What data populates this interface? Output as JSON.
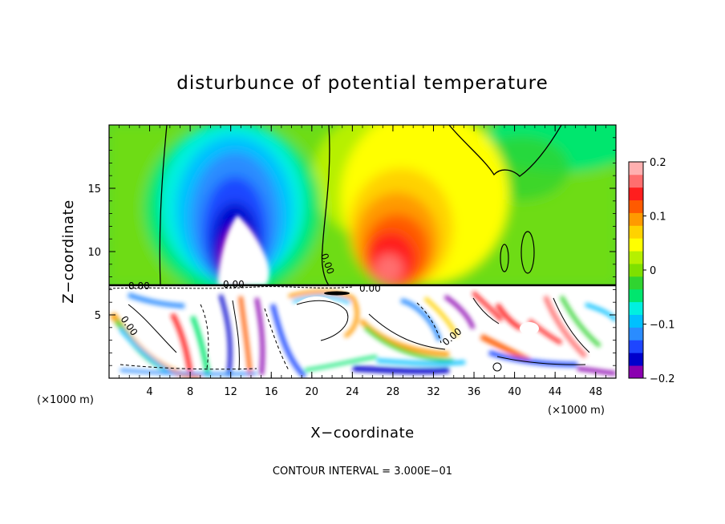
{
  "chart_data": {
    "type": "heatmap",
    "title": "disturbunce of potential temperature",
    "xlabel": "X−coordinate",
    "ylabel": "Z−coordinate",
    "x_unit_label": "(×1000 m)",
    "y_unit_label": "(×1000 m)",
    "xlim": [
      0,
      50
    ],
    "ylim": [
      0,
      20
    ],
    "x_ticks": [
      4,
      8,
      12,
      16,
      20,
      24,
      28,
      32,
      36,
      40,
      44,
      48
    ],
    "x_tick_labels": [
      "4",
      "8",
      "12",
      "16",
      "20",
      "24",
      "28",
      "32",
      "36",
      "40",
      "44",
      "48"
    ],
    "y_ticks": [
      5,
      10,
      15
    ],
    "y_tick_labels": [
      "5",
      "10",
      "15"
    ],
    "colorbar": {
      "min": -0.2,
      "max": 0.2,
      "ticks": [
        0.2,
        0.1,
        0,
        -0.1,
        -0.2
      ],
      "tick_labels": [
        "0.2",
        "0.1",
        "0",
        "−0.1",
        "−0.2"
      ],
      "colors": [
        "#8a00b0",
        "#0000cc",
        "#1e46ff",
        "#2a8cff",
        "#00c0ff",
        "#00f0e0",
        "#00e66e",
        "#30d430",
        "#7ee000",
        "#b6f000",
        "#ffff00",
        "#ffd200",
        "#ff9a00",
        "#ff5a00",
        "#ff1e1e",
        "#ff6e6e",
        "#ffb0b0"
      ]
    },
    "contour_labels": [
      "0.00",
      "0.00",
      "0.00",
      "0.00",
      "0.00",
      "0.00"
    ],
    "contour_interval_text": "CONTOUR INTERVAL = 3.000E−01",
    "features": [
      {
        "name": "cold anomaly",
        "x": 12.5,
        "z": 12.0,
        "value": -0.2
      },
      {
        "name": "warm anomaly",
        "x": 28.5,
        "z": 10.5,
        "value": 0.15
      },
      {
        "name": "turbulent boundary layer",
        "x_range": [
          0,
          50
        ],
        "z_range": [
          0,
          7.5
        ]
      }
    ]
  }
}
